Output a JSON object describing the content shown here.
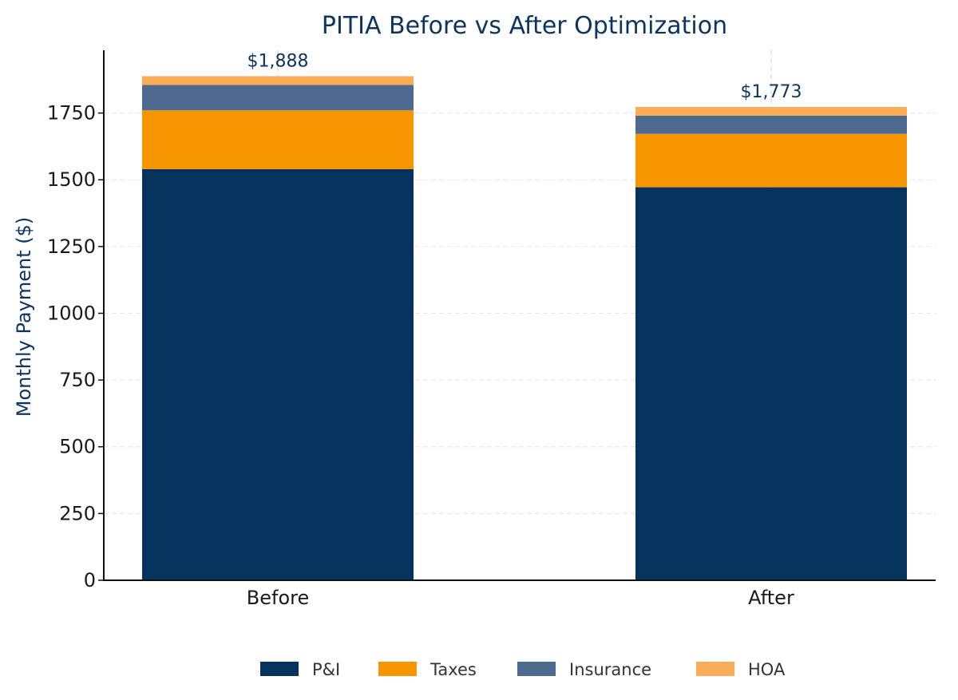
{
  "chart_data": {
    "type": "bar",
    "stacked": true,
    "title": "PITIA Before vs After Optimization",
    "xlabel": "",
    "ylabel": "Monthly Payment ($)",
    "categories": [
      "Before",
      "After"
    ],
    "ylim": [
      0,
      1985
    ],
    "yticks": [
      0,
      250,
      500,
      750,
      1000,
      1250,
      1500,
      1750
    ],
    "grid": true,
    "legend_position": "bottom",
    "series": [
      {
        "name": "P&I",
        "color": "#05335e",
        "values": [
          1540,
          1472
        ]
      },
      {
        "name": "Taxes",
        "color": "#f79501",
        "values": [
          220,
          200
        ]
      },
      {
        "name": "Insurance",
        "color": "#4f6a8f",
        "values": [
          95,
          68
        ]
      },
      {
        "name": "HOA",
        "color": "#f9ad58",
        "values": [
          33,
          33
        ]
      }
    ],
    "total_labels": [
      "$1,888",
      "$1,773"
    ]
  }
}
